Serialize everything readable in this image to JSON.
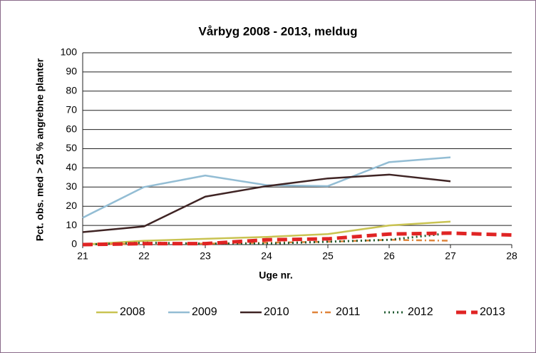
{
  "chart_data": {
    "type": "line",
    "title": "Vårbyg 2008 - 2013, meldug",
    "x_label": "Uge nr.",
    "y_label": "Pct. obs. med > 25 % angrebne planter",
    "x": [
      21,
      22,
      23,
      24,
      25,
      26,
      27,
      28
    ],
    "xlim": [
      21,
      28
    ],
    "xticks": [
      21,
      22,
      23,
      24,
      25,
      26,
      27,
      28
    ],
    "ylim": [
      0,
      100
    ],
    "yticks": [
      0,
      10,
      20,
      30,
      40,
      50,
      60,
      70,
      80,
      90,
      100
    ],
    "grid": true,
    "legend": "bottom",
    "series": [
      {
        "name": "2008",
        "color": "#c9c352",
        "dash": "solid",
        "values": [
          0,
          2,
          3,
          4,
          5.5,
          10,
          12,
          null
        ]
      },
      {
        "name": "2009",
        "color": "#93bdd4",
        "dash": "solid",
        "values": [
          14,
          30,
          36,
          31,
          30.5,
          43,
          45.5,
          null
        ]
      },
      {
        "name": "2010",
        "color": "#3f2424",
        "dash": "solid",
        "values": [
          6.5,
          9.5,
          25,
          30.5,
          34.5,
          36.5,
          33,
          null
        ]
      },
      {
        "name": "2011",
        "color": "#e0843a",
        "dash": "dashdot",
        "values": [
          0,
          0.5,
          0.5,
          1,
          1.5,
          2.5,
          2,
          null
        ]
      },
      {
        "name": "2012",
        "color": "#1f5a30",
        "dash": "dot",
        "values": [
          0,
          1,
          0.5,
          0.5,
          1.5,
          2.5,
          6,
          null
        ]
      },
      {
        "name": "2013",
        "color": "#e02424",
        "dash": "dash",
        "values": [
          0,
          0.5,
          0.5,
          2.5,
          3,
          5.5,
          6,
          5
        ]
      }
    ]
  }
}
